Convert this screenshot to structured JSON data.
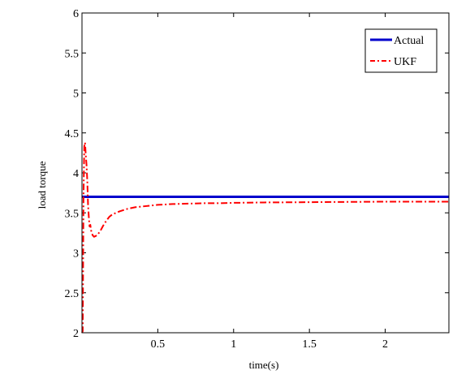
{
  "chart_data": {
    "type": "line",
    "title": "",
    "xlabel": "time(s)",
    "ylabel": "load torque",
    "xlim": [
      0.0,
      2.42
    ],
    "ylim": [
      2,
      6
    ],
    "x_ticks": [
      0.5,
      1,
      1.5,
      2
    ],
    "x_tick_labels": [
      "0.5",
      "1",
      "1.5",
      "2"
    ],
    "y_ticks": [
      2,
      2.5,
      3,
      3.5,
      4,
      4.5,
      5,
      5.5,
      6
    ],
    "y_tick_labels": [
      "2",
      "2.5",
      "3",
      "3.5",
      "4",
      "4.5",
      "5",
      "5.5",
      "6"
    ],
    "grid": false,
    "legend": {
      "position": "top-right",
      "entries": [
        "Actual",
        "UKF"
      ]
    },
    "series": [
      {
        "name": "Actual",
        "color": "#0000cc",
        "style": "solid",
        "x": [
          0.0,
          2.42
        ],
        "y": [
          3.7,
          3.7
        ]
      },
      {
        "name": "UKF",
        "color": "#ff0000",
        "style": "dash-dot",
        "x": [
          0.0,
          0.005,
          0.01,
          0.015,
          0.02,
          0.025,
          0.03,
          0.035,
          0.04,
          0.045,
          0.05,
          0.055,
          0.06,
          0.07,
          0.08,
          0.09,
          0.1,
          0.12,
          0.14,
          0.16,
          0.18,
          0.2,
          0.25,
          0.3,
          0.35,
          0.4,
          0.5,
          0.6,
          0.7,
          0.8,
          0.9,
          1.0,
          1.2,
          1.4,
          1.6,
          1.8,
          2.0,
          2.2,
          2.42
        ],
        "y": [
          2.0,
          2.02,
          3.7,
          4.33,
          4.38,
          4.22,
          4.1,
          3.9,
          3.6,
          3.45,
          3.33,
          3.35,
          3.28,
          3.22,
          3.2,
          3.21,
          3.22,
          3.27,
          3.34,
          3.4,
          3.45,
          3.48,
          3.52,
          3.55,
          3.57,
          3.58,
          3.6,
          3.61,
          3.615,
          3.62,
          3.62,
          3.625,
          3.63,
          3.632,
          3.635,
          3.637,
          3.64,
          3.64,
          3.64
        ]
      }
    ]
  }
}
